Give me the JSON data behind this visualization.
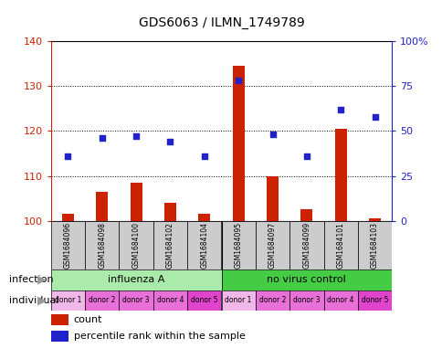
{
  "title": "GDS6063 / ILMN_1749789",
  "samples": [
    "GSM1684096",
    "GSM1684098",
    "GSM1684100",
    "GSM1684102",
    "GSM1684104",
    "GSM1684095",
    "GSM1684097",
    "GSM1684099",
    "GSM1684101",
    "GSM1684103"
  ],
  "bar_values": [
    101.5,
    106.5,
    108.5,
    104.0,
    101.5,
    134.5,
    110.0,
    102.5,
    120.5,
    100.5
  ],
  "scatter_values": [
    36,
    46,
    47,
    44,
    36,
    78,
    48,
    36,
    62,
    58
  ],
  "ylim_left": [
    100,
    140
  ],
  "ylim_right": [
    0,
    100
  ],
  "yticks_left": [
    100,
    110,
    120,
    130,
    140
  ],
  "yticks_right": [
    0,
    25,
    50,
    75,
    100
  ],
  "ytick_labels_left": [
    "100",
    "110",
    "120",
    "130",
    "140"
  ],
  "ytick_labels_right": [
    "0",
    "25",
    "50",
    "75",
    "100%"
  ],
  "infection_groups": [
    {
      "label": "influenza A",
      "start": 0,
      "end": 5,
      "color": "#aaeaaa"
    },
    {
      "label": "no virus control",
      "start": 5,
      "end": 10,
      "color": "#44cc44"
    }
  ],
  "individual_labels": [
    "donor 1",
    "donor 2",
    "donor 3",
    "donor 4",
    "donor 5",
    "donor 1",
    "donor 2",
    "donor 3",
    "donor 4",
    "donor 5"
  ],
  "individual_colors": [
    "#f0b8e8",
    "#e870d8",
    "#e870d8",
    "#e870d8",
    "#e044cc",
    "#f0b8e8",
    "#e870d8",
    "#e870d8",
    "#e870d8",
    "#e044cc"
  ],
  "bar_color": "#cc2200",
  "scatter_color": "#2222cc",
  "bar_base": 100,
  "background_color": "#ffffff",
  "plot_bg": "#ffffff",
  "grid_color": "#000000",
  "label_infection": "infection",
  "label_individual": "individual",
  "legend_count": "count",
  "legend_percentile": "percentile rank within the sample",
  "sample_bg": "#cccccc"
}
